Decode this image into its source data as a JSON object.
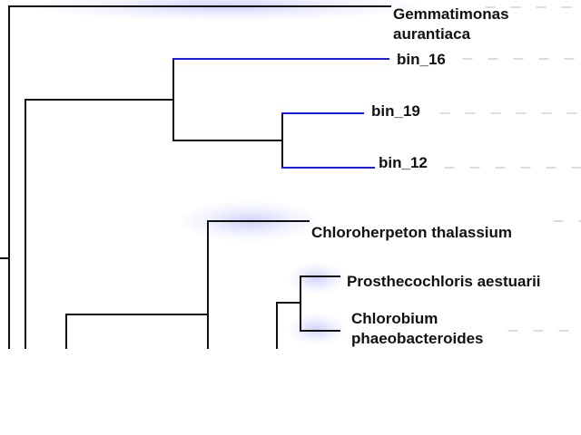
{
  "tree": {
    "colors": {
      "default_branch": "#111111",
      "highlight_branch": "#1a1aff",
      "guide": "#bbbbbb"
    },
    "leaves": [
      {
        "id": "gemmatimonas",
        "label": "Gemmatimonas aurantiaca",
        "lines": [
          "Gemmatimonas",
          "aurantiaca"
        ],
        "highlighted": false
      },
      {
        "id": "bin16",
        "label": "bin_16",
        "lines": [
          "bin_16"
        ],
        "highlighted": true
      },
      {
        "id": "bin19",
        "label": "bin_19",
        "lines": [
          "bin_19"
        ],
        "highlighted": true
      },
      {
        "id": "bin12",
        "label": "bin_12",
        "lines": [
          "bin_12"
        ],
        "highlighted": true
      },
      {
        "id": "chloroherpeton",
        "label": "Chloroherpeton thalassium",
        "lines": [
          "Chloroherpeton thalassium"
        ],
        "highlighted": false
      },
      {
        "id": "prosthecochloris",
        "label": "Prosthecochloris aestuarii",
        "lines": [
          "Prosthecochloris aestuarii"
        ],
        "highlighted": false
      },
      {
        "id": "chlorobium",
        "label": "Chlorobium phaeobacteroides",
        "lines": [
          "Chlorobium",
          "phaeobacteroides"
        ],
        "highlighted": false
      }
    ]
  }
}
